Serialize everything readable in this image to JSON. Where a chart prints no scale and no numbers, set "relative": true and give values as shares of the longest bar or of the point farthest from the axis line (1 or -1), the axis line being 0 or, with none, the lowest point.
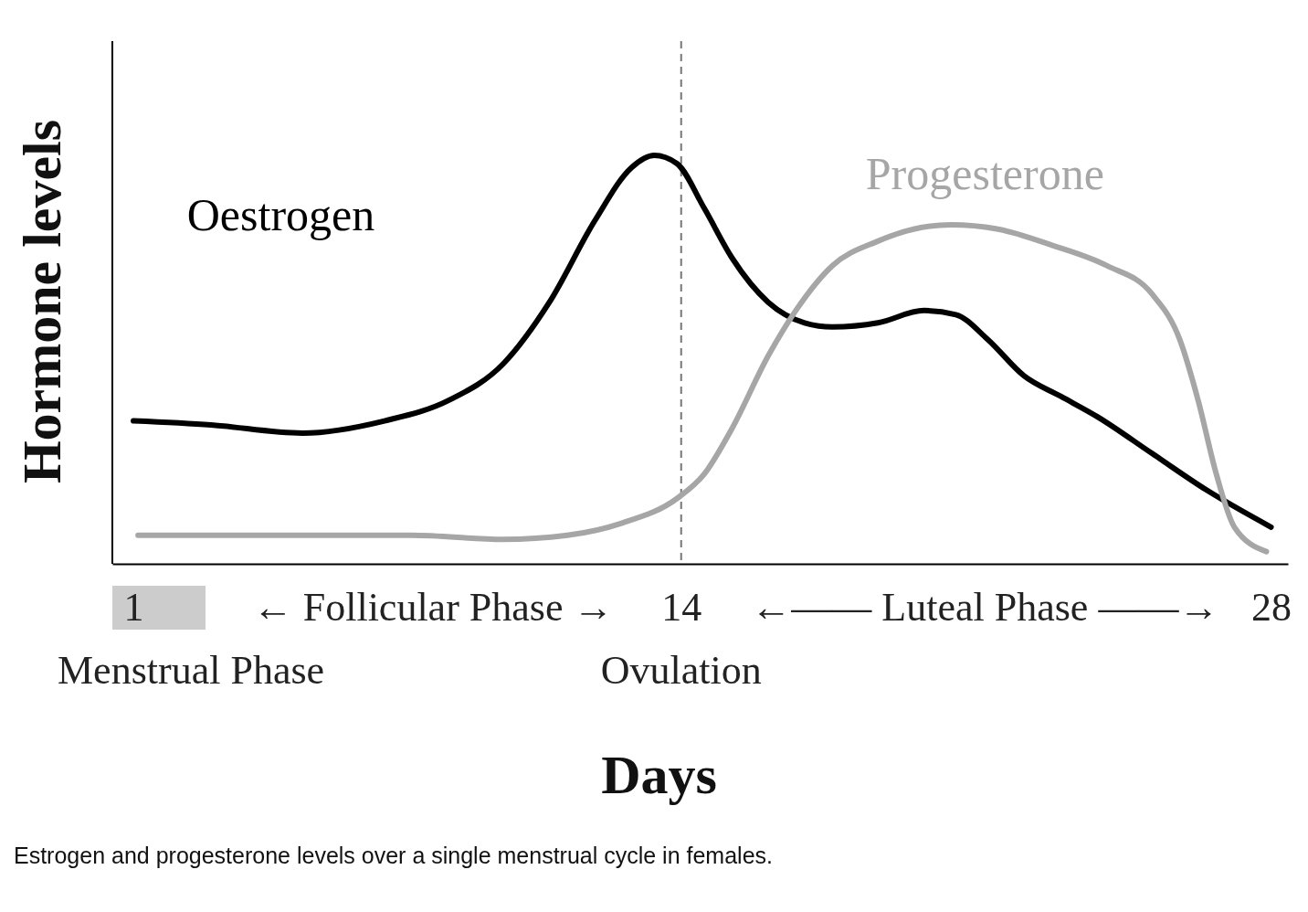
{
  "chart_data": {
    "type": "line",
    "relative": true,
    "xlabel": "Days",
    "ylabel": "Hormone levels",
    "xlim": [
      0.5,
      28.4
    ],
    "xticks": [
      1,
      {
        "value": 8.1,
        "label": "← Follicular Phase →"
      },
      14,
      {
        "value": 21.2,
        "label": "←—— Luteal Phase ——→"
      },
      28
    ],
    "grid": false,
    "line_style": "solid",
    "marker": "none",
    "series": [
      {
        "name": "Oestrogen",
        "color": "#000000",
        "x": [
          1.0,
          2.84,
          5.01,
          6.96,
          8.48,
          9.78,
          10.87,
          11.95,
          12.82,
          13.36,
          13.9,
          14.55,
          15.2,
          16.07,
          16.93,
          17.59,
          18.67,
          19.76,
          20.52,
          21.27,
          22.14,
          23.01,
          23.88,
          25.18,
          26.48,
          28.0
        ],
        "values": [
          0.35,
          0.34,
          0.32,
          0.35,
          0.4,
          0.49,
          0.64,
          0.84,
          0.97,
          1.0,
          0.98,
          0.87,
          0.75,
          0.64,
          0.59,
          0.58,
          0.59,
          0.62,
          0.61,
          0.55,
          0.46,
          0.41,
          0.36,
          0.27,
          0.18,
          0.09
        ]
      },
      {
        "name": "Progesterone",
        "color": "#a6a6a6",
        "x": [
          1.11,
          4.36,
          7.61,
          9.78,
          11.3,
          12.6,
          13.9,
          14.55,
          15.2,
          16.07,
          16.72,
          17.59,
          18.67,
          19.54,
          20.41,
          21.49,
          22.8,
          24.1,
          25.18,
          25.83,
          26.27,
          26.7,
          27.13,
          27.89
        ],
        "values": [
          0.07,
          0.07,
          0.07,
          0.06,
          0.07,
          0.1,
          0.16,
          0.22,
          0.33,
          0.51,
          0.62,
          0.73,
          0.79,
          0.82,
          0.83,
          0.82,
          0.78,
          0.73,
          0.66,
          0.55,
          0.4,
          0.22,
          0.09,
          0.03
        ]
      }
    ],
    "ref_lines": [
      {
        "axis": "x",
        "value": 14,
        "label": "Ovulation",
        "color": "#777777",
        "line_style": "dashed"
      }
    ],
    "annotations": [
      "Menstrual Phase",
      "Estrogen and progesterone levels over a single menstrual cycle in females."
    ]
  }
}
